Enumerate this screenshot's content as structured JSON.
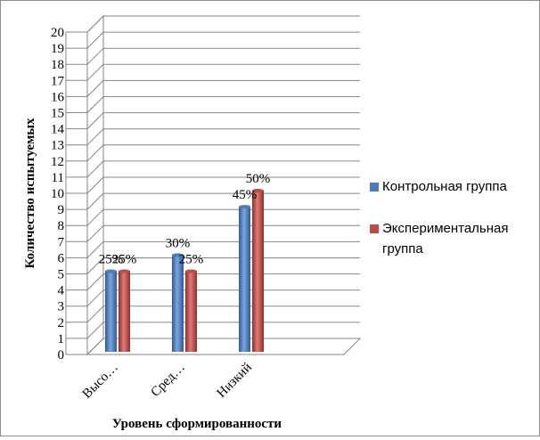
{
  "chart_data": {
    "type": "bar",
    "categories": [
      "Высо…",
      "Сред…",
      "Низкий"
    ],
    "series": [
      {
        "name": "Контрольная группа",
        "color": "#4a7ebb",
        "values": [
          5,
          6,
          9
        ],
        "labels": [
          "25%",
          "30%",
          "45%"
        ]
      },
      {
        "name": "Экспериментальная группа",
        "color": "#be4b48",
        "values": [
          5,
          5,
          10
        ],
        "labels": [
          "25%",
          "25%",
          "50%"
        ]
      }
    ],
    "title": "",
    "xlabel": "Уровень сформированности",
    "ylabel": "Количество испытуемых",
    "ylim": [
      0,
      20
    ],
    "yticks": [
      0,
      1,
      2,
      3,
      4,
      5,
      6,
      7,
      8,
      9,
      10,
      11,
      12,
      13,
      14,
      15,
      16,
      17,
      18,
      19,
      20
    ],
    "grid": true,
    "legend_position": "right",
    "legend_lines": [
      [
        "Контрольная группа"
      ],
      [
        "Экспериментальная",
        "группа"
      ]
    ]
  }
}
